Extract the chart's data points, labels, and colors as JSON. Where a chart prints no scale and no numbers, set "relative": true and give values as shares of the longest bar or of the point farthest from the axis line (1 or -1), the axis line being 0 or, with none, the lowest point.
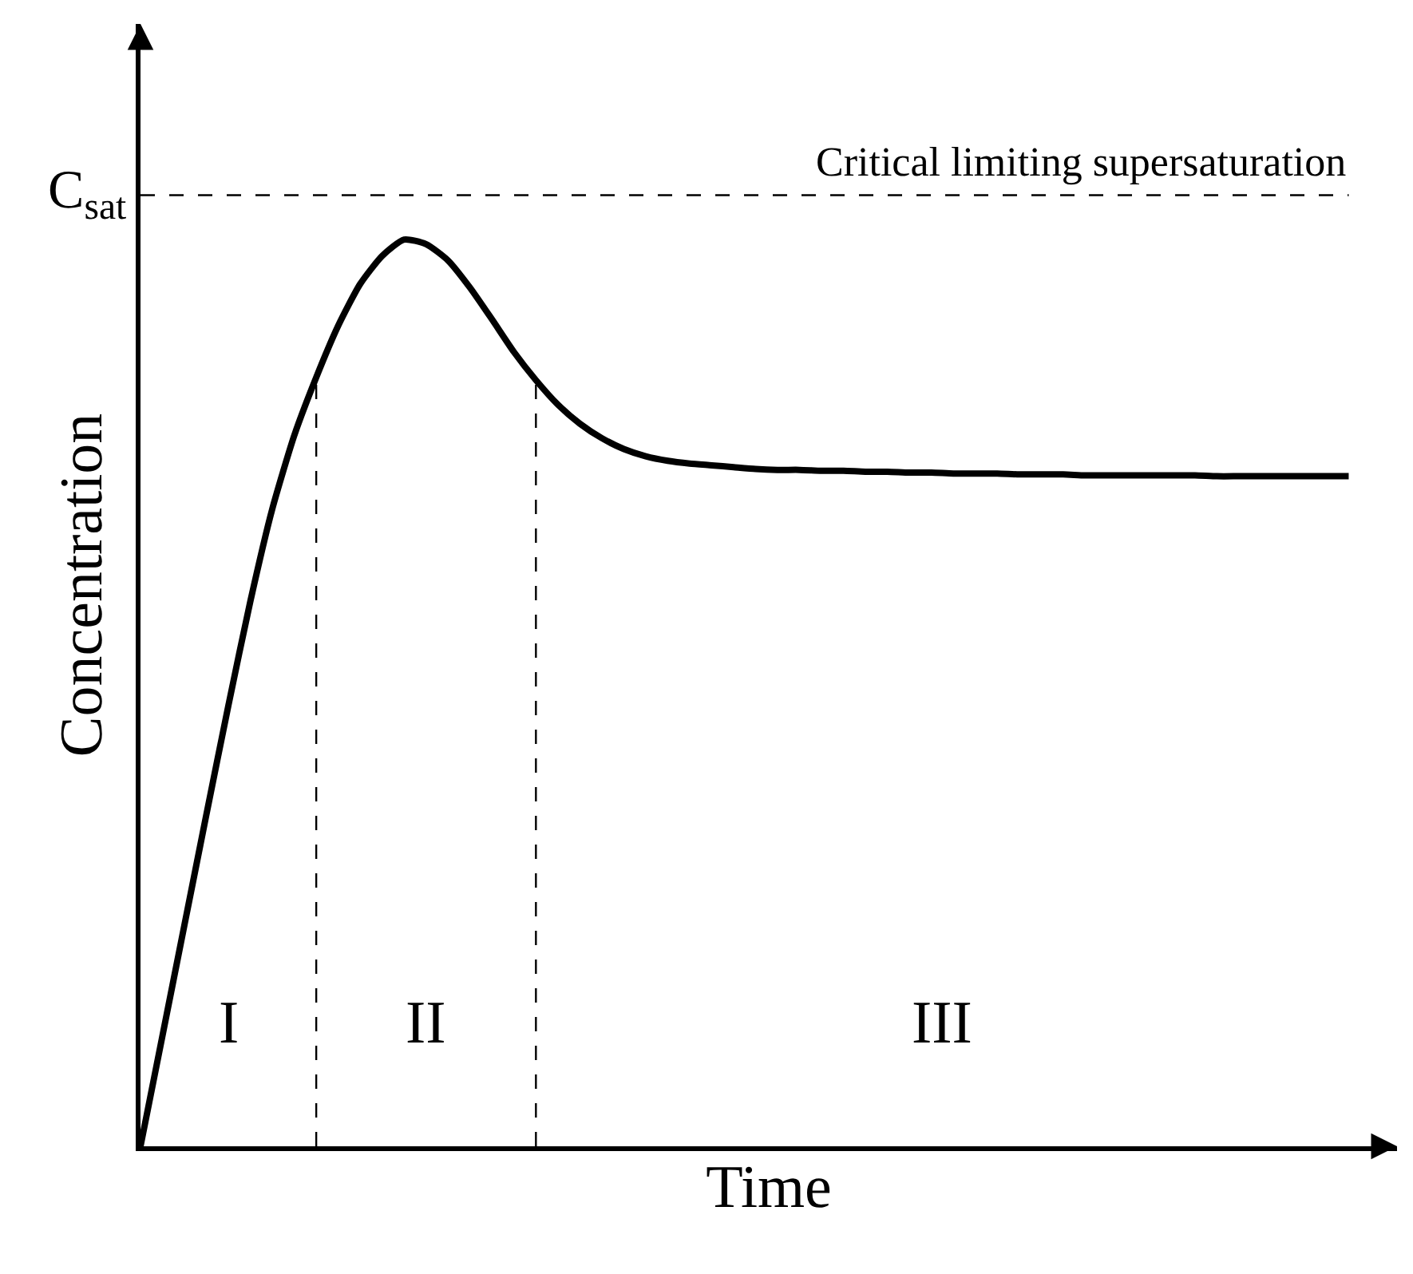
{
  "chart_data": {
    "type": "line",
    "relative": true,
    "xlabel": "Time",
    "ylabel": "Concentration",
    "categories": [
      null,
      null,
      null,
      null,
      null,
      null,
      null,
      null,
      null,
      null,
      null,
      null,
      null,
      null,
      null,
      null,
      null,
      null,
      null,
      null,
      null,
      null,
      null,
      null,
      null,
      null,
      null,
      null,
      null,
      null,
      null,
      null,
      null,
      null,
      null,
      null,
      null,
      null,
      null,
      null,
      null,
      null,
      null,
      null,
      null,
      null,
      null,
      null,
      null,
      null,
      null,
      null,
      null,
      null,
      null,
      null
    ],
    "series": [
      {
        "color": "#000000",
        "values": [
          0,
          0.122,
          0.244,
          0.366,
          0.486,
          0.601,
          0.703,
          0.784,
          0.848,
          0.905,
          0.951,
          0.982,
          1,
          0.995,
          0.977,
          0.947,
          0.912,
          0.876,
          0.845,
          0.818,
          0.797,
          0.781,
          0.769,
          0.761,
          0.756,
          0.753,
          0.751,
          0.749,
          0.747,
          0.746,
          0.746,
          0.745,
          0.745,
          0.744,
          0.744,
          0.743,
          0.743,
          0.742,
          0.742,
          0.742,
          0.741,
          0.741,
          0.741,
          0.74,
          0.74,
          0.74,
          0.74,
          0.74,
          0.74,
          0.739,
          0.739,
          0.739,
          0.739,
          0.739,
          0.739,
          0.739
        ]
      }
    ],
    "ref_lines": [
      {
        "axis": "y",
        "value": 1.049,
        "label": "Critical limiting supersaturation",
        "line_style": "dashed",
        "color": "#000000"
      }
    ],
    "annotations": [
      "C$_{sat}$",
      "I",
      "II",
      "III"
    ],
    "tick_labels": false,
    "marker": "none",
    "line_style": "solid"
  }
}
